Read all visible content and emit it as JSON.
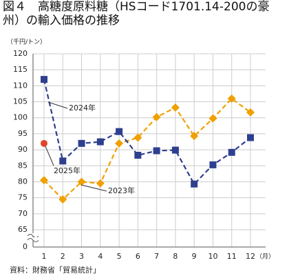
{
  "chart_data": {
    "type": "line",
    "title": "図４　高糖度原料糖（HSコード1701.14-200の豪州）の輸入価格の推移",
    "y_unit": "（千円/トン）",
    "x_unit": "（月）",
    "source": "資料：財務省「貿易統計」",
    "categories": [
      "1",
      "2",
      "3",
      "4",
      "5",
      "6",
      "7",
      "8",
      "9",
      "10",
      "11",
      "12"
    ],
    "series": [
      {
        "name": "2023年",
        "color": "#f0a000",
        "marker": "diamond",
        "values": [
          80.5,
          74.5,
          80,
          79.5,
          92,
          93.8,
          100.2,
          103.2,
          94.3,
          99.8,
          106,
          101.7
        ]
      },
      {
        "name": "2024年",
        "color": "#2e3f8f",
        "marker": "square",
        "values": [
          112,
          86.5,
          92,
          92.5,
          95.7,
          88.3,
          89.7,
          89.9,
          79.3,
          85.3,
          89.2,
          93.8
        ]
      },
      {
        "name": "2025年",
        "color": "#e0452a",
        "marker": "circle",
        "values": [
          92,
          null,
          null,
          null,
          null,
          null,
          null,
          null,
          null,
          null,
          null,
          null
        ]
      }
    ],
    "ylim": [
      0,
      120
    ],
    "axis_break": [
      0,
      65
    ],
    "yticks": [
      0,
      65,
      70,
      75,
      80,
      85,
      90,
      95,
      100,
      105,
      110,
      115,
      120
    ],
    "grid": true
  }
}
